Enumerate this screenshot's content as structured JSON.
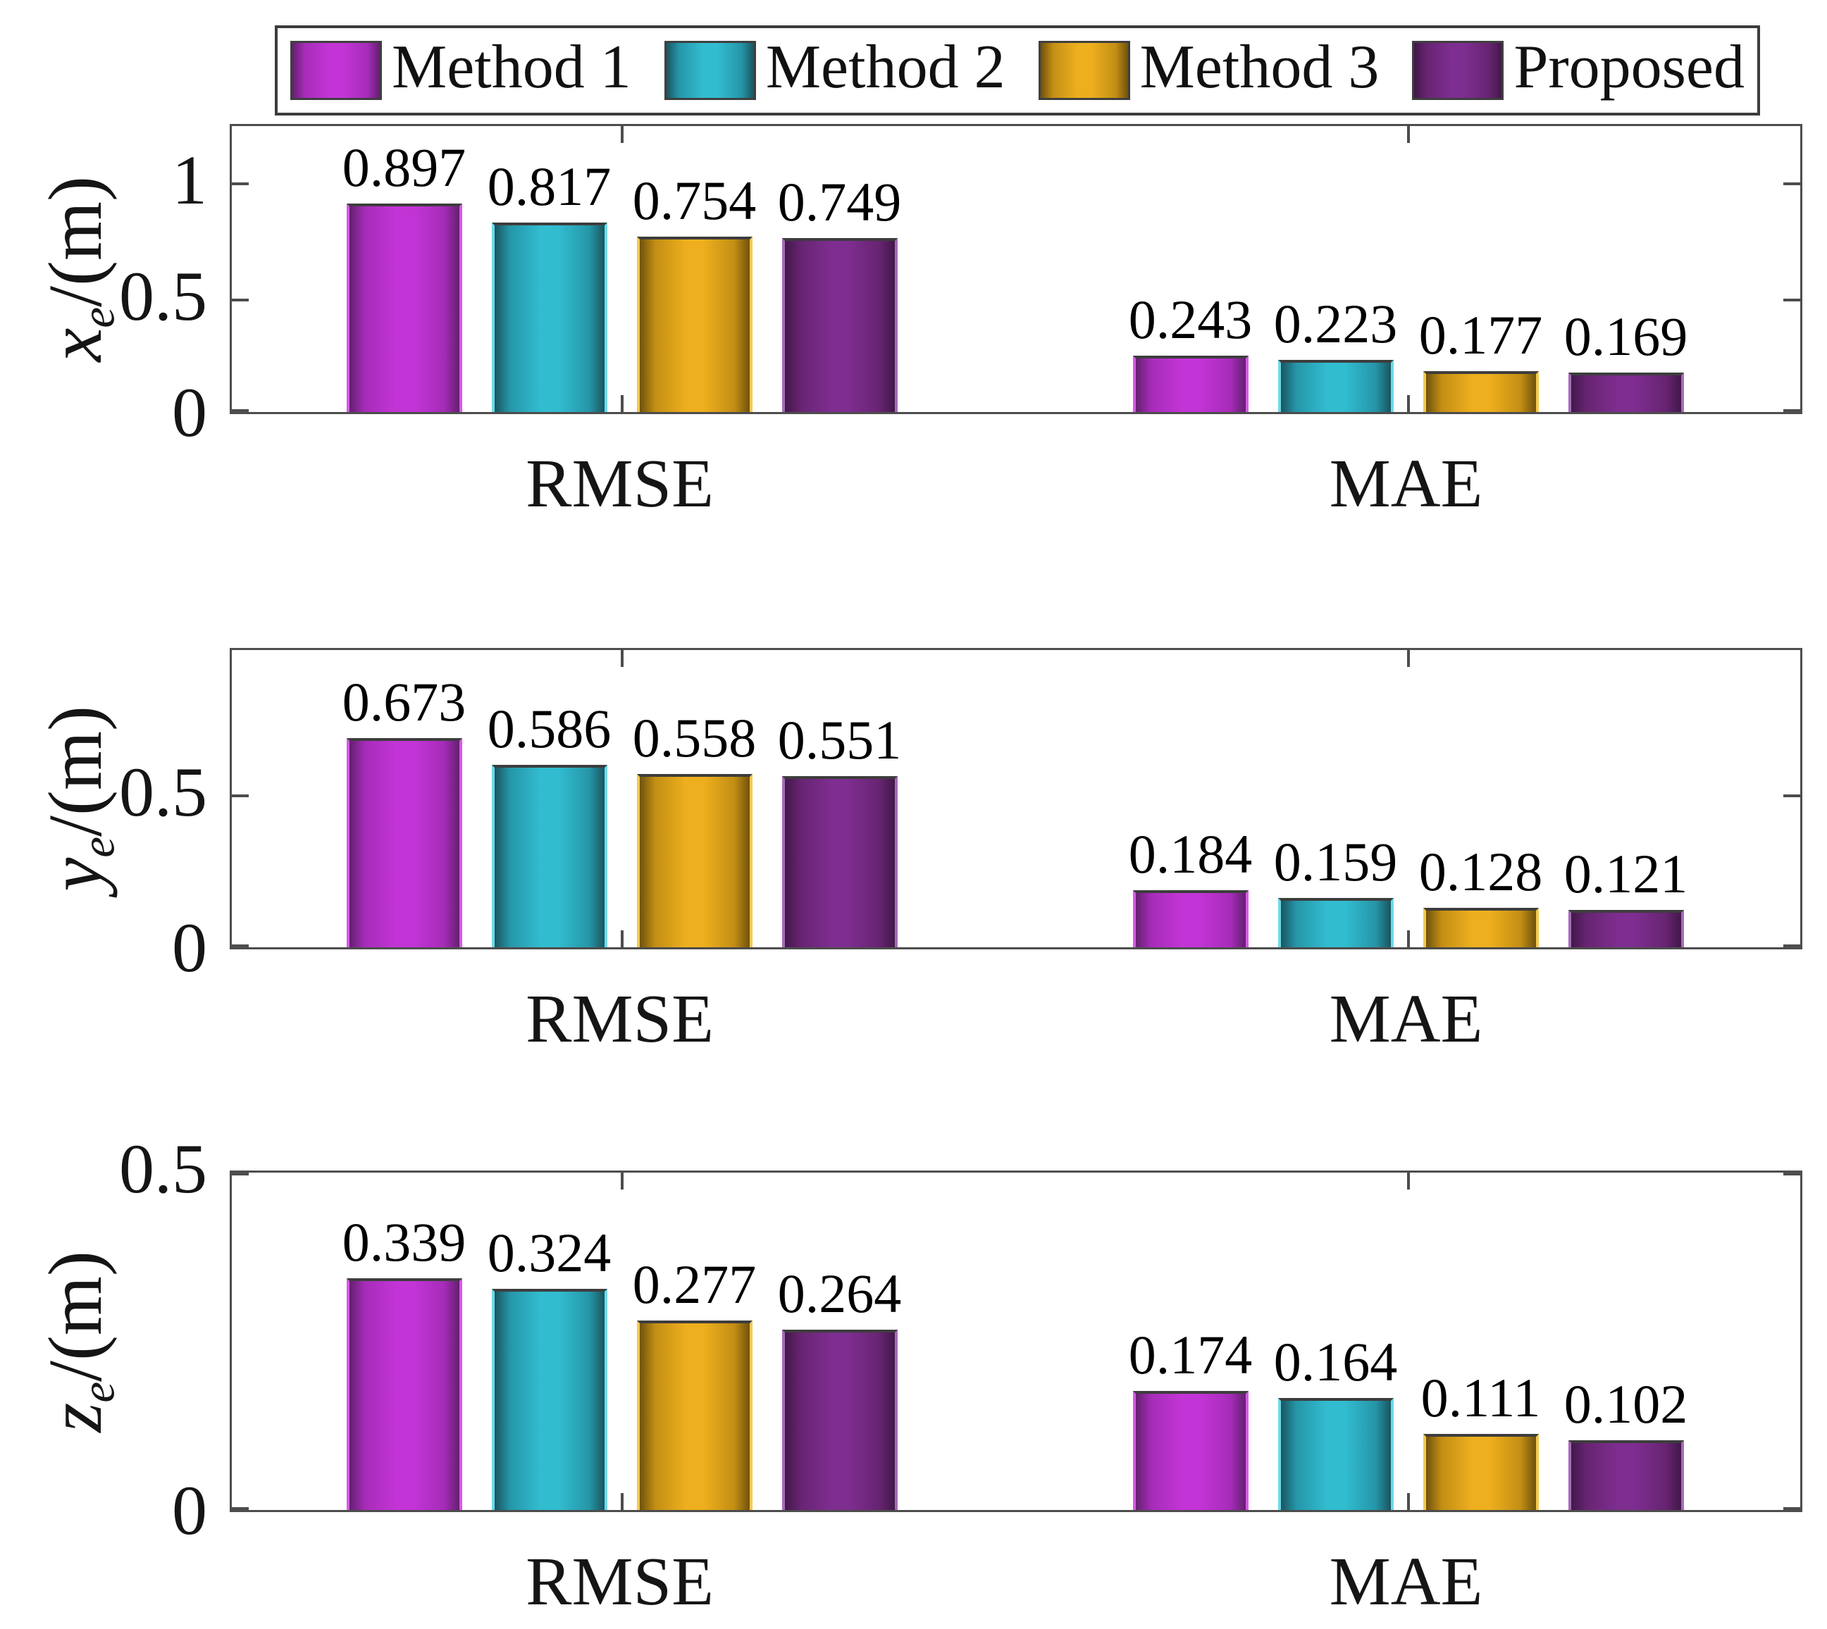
{
  "legend": {
    "items": [
      "Method 1",
      "Method 2",
      "Method 3",
      "Proposed"
    ]
  },
  "colors": {
    "axis": "#4d4d4d",
    "text": "#151515",
    "series": [
      {
        "name": "method-1",
        "bright": "#C334D6",
        "mid": "#A62CB8",
        "edge": "#641F70",
        "border": "#D75AE6"
      },
      {
        "name": "method-2",
        "bright": "#32BCD0",
        "mid": "#2596A8",
        "edge": "#1A545F",
        "border": "#6FD9E8"
      },
      {
        "name": "method-3",
        "bright": "#EEAF1E",
        "mid": "#C28E14",
        "edge": "#6F520C",
        "border": "#F4C94F"
      },
      {
        "name": "proposed",
        "bright": "#7E2D90",
        "mid": "#672471",
        "edge": "#41184A",
        "border": "#A66BB8"
      }
    ]
  },
  "chart_data": {
    "type": "bar",
    "categories": [
      "RMSE",
      "MAE"
    ],
    "legend_entries": [
      "Method 1",
      "Method 2",
      "Method 3",
      "Proposed"
    ],
    "legend_position": "top",
    "grid": false,
    "panels": [
      {
        "ylabel": {
          "main": "x",
          "sub": "e",
          "unit": "/(m)"
        },
        "ylim": [
          0,
          1.25
        ],
        "yticks": [
          {
            "v": 0,
            "label": "0"
          },
          {
            "v": 0.5,
            "label": "0.5"
          },
          {
            "v": 1,
            "label": "1"
          }
        ],
        "series": [
          {
            "name": "Method 1",
            "values": [
              0.897,
              0.243
            ],
            "labels": [
              "0.897",
              "0.243"
            ]
          },
          {
            "name": "Method 2",
            "values": [
              0.817,
              0.223
            ],
            "labels": [
              "0.817",
              "0.223"
            ]
          },
          {
            "name": "Method 3",
            "values": [
              0.754,
              0.177
            ],
            "labels": [
              "0.754",
              "0.177"
            ]
          },
          {
            "name": "Proposed",
            "values": [
              0.749,
              0.169
            ],
            "labels": [
              "0.749",
              "0.169"
            ]
          }
        ]
      },
      {
        "ylabel": {
          "main": "y",
          "sub": "e",
          "unit": "/(m)"
        },
        "ylim": [
          0,
          0.97
        ],
        "yticks": [
          {
            "v": 0,
            "label": "0"
          },
          {
            "v": 0.5,
            "label": "0.5"
          }
        ],
        "series": [
          {
            "name": "Method 1",
            "values": [
              0.673,
              0.184
            ],
            "labels": [
              "0.673",
              "0.184"
            ]
          },
          {
            "name": "Method 2",
            "values": [
              0.586,
              0.159
            ],
            "labels": [
              "0.586",
              "0.159"
            ]
          },
          {
            "name": "Method 3",
            "values": [
              0.558,
              0.128
            ],
            "labels": [
              "0.558",
              "0.128"
            ]
          },
          {
            "name": "Proposed",
            "values": [
              0.551,
              0.121
            ],
            "labels": [
              "0.551",
              "0.121"
            ]
          }
        ]
      },
      {
        "ylabel": {
          "main": "z",
          "sub": "e",
          "unit": "/(m)"
        },
        "ylim": [
          0,
          0.5
        ],
        "yticks": [
          {
            "v": 0,
            "label": "0"
          },
          {
            "v": 0.5,
            "label": "0.5"
          }
        ],
        "series": [
          {
            "name": "Method 1",
            "values": [
              0.339,
              0.174
            ],
            "labels": [
              "0.339",
              "0.174"
            ]
          },
          {
            "name": "Method 2",
            "values": [
              0.324,
              0.164
            ],
            "labels": [
              "0.324",
              "0.164"
            ]
          },
          {
            "name": "Method 3",
            "values": [
              0.277,
              0.111
            ],
            "labels": [
              "0.277",
              "0.111"
            ]
          },
          {
            "name": "Proposed",
            "values": [
              0.264,
              0.102
            ],
            "labels": [
              "0.264",
              "0.102"
            ]
          }
        ]
      }
    ]
  }
}
